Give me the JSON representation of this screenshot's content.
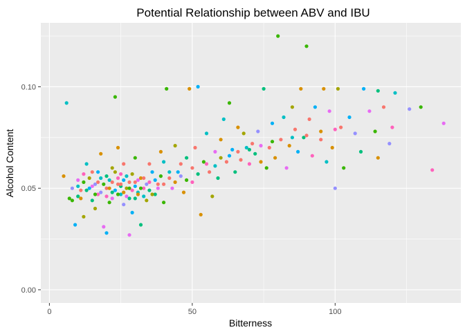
{
  "chart_data": {
    "type": "scatter",
    "title": "Potential Relationship between ABV and IBU",
    "xlabel": "Bitterness",
    "ylabel": "Alcohol Content",
    "xlim": [
      -3,
      144
    ],
    "ylim": [
      -0.0065,
      0.1315
    ],
    "x_ticks": [
      0,
      50,
      100
    ],
    "x_tick_labels": [
      "0",
      "50",
      "100"
    ],
    "y_ticks": [
      0.0,
      0.05,
      0.1
    ],
    "y_tick_labels": [
      "0.00",
      "0.05",
      "0.10"
    ],
    "grid": true,
    "legend": "none",
    "colors": [
      "#F8766D",
      "#D89000",
      "#A3A500",
      "#39B600",
      "#00BF7D",
      "#00BFC4",
      "#00B0F6",
      "#9590FF",
      "#E76BF3",
      "#FF62BC"
    ],
    "points": [
      [
        5,
        0.056,
        1
      ],
      [
        6,
        0.092,
        5
      ],
      [
        7,
        0.045,
        3
      ],
      [
        8,
        0.044,
        3
      ],
      [
        8,
        0.05,
        7
      ],
      [
        9,
        0.032,
        6
      ],
      [
        10,
        0.046,
        4
      ],
      [
        10,
        0.054,
        8
      ],
      [
        11,
        0.049,
        0
      ],
      [
        12,
        0.036,
        2
      ],
      [
        12,
        0.053,
        3
      ],
      [
        13,
        0.062,
        5
      ],
      [
        14,
        0.05,
        6
      ],
      [
        15,
        0.044,
        4
      ],
      [
        15,
        0.058,
        0
      ],
      [
        16,
        0.04,
        2
      ],
      [
        16,
        0.052,
        7
      ],
      [
        17,
        0.047,
        9
      ],
      [
        18,
        0.067,
        1
      ],
      [
        18,
        0.055,
        5
      ],
      [
        19,
        0.031,
        8
      ],
      [
        20,
        0.028,
        6
      ],
      [
        20,
        0.05,
        0
      ],
      [
        21,
        0.043,
        3
      ],
      [
        22,
        0.06,
        2
      ],
      [
        22,
        0.048,
        4
      ],
      [
        23,
        0.095,
        3
      ],
      [
        24,
        0.052,
        0
      ],
      [
        24,
        0.07,
        1
      ],
      [
        25,
        0.047,
        5
      ],
      [
        25,
        0.057,
        9
      ],
      [
        26,
        0.042,
        7
      ],
      [
        26,
        0.062,
        0
      ],
      [
        27,
        0.05,
        2
      ],
      [
        28,
        0.027,
        8
      ],
      [
        28,
        0.045,
        4
      ],
      [
        29,
        0.038,
        6
      ],
      [
        30,
        0.053,
        0
      ],
      [
        30,
        0.065,
        3
      ],
      [
        31,
        0.048,
        5
      ],
      [
        32,
        0.032,
        4
      ],
      [
        32,
        0.055,
        1
      ],
      [
        33,
        0.05,
        9
      ],
      [
        34,
        0.044,
        2
      ],
      [
        35,
        0.062,
        0
      ],
      [
        36,
        0.058,
        6
      ],
      [
        37,
        0.047,
        4
      ],
      [
        38,
        0.052,
        0
      ],
      [
        39,
        0.068,
        1
      ],
      [
        40,
        0.043,
        3
      ],
      [
        40,
        0.063,
        5
      ],
      [
        41,
        0.099,
        3
      ],
      [
        42,
        0.055,
        0
      ],
      [
        43,
        0.05,
        8
      ],
      [
        44,
        0.071,
        2
      ],
      [
        45,
        0.058,
        6
      ],
      [
        46,
        0.062,
        0
      ],
      [
        47,
        0.048,
        1
      ],
      [
        48,
        0.065,
        4
      ],
      [
        49,
        0.099,
        1
      ],
      [
        50,
        0.053,
        9
      ],
      [
        51,
        0.07,
        0
      ],
      [
        52,
        0.1,
        6
      ],
      [
        53,
        0.037,
        1
      ],
      [
        54,
        0.063,
        3
      ],
      [
        55,
        0.077,
        5
      ],
      [
        56,
        0.058,
        0
      ],
      [
        57,
        0.046,
        2
      ],
      [
        58,
        0.068,
        8
      ],
      [
        59,
        0.055,
        4
      ],
      [
        60,
        0.074,
        1
      ],
      [
        61,
        0.084,
        5
      ],
      [
        62,
        0.063,
        0
      ],
      [
        63,
        0.092,
        3
      ],
      [
        64,
        0.069,
        6
      ],
      [
        65,
        0.058,
        4
      ],
      [
        66,
        0.08,
        1
      ],
      [
        67,
        0.064,
        0
      ],
      [
        68,
        0.077,
        2
      ],
      [
        69,
        0.07,
        5
      ],
      [
        70,
        0.062,
        9
      ],
      [
        71,
        0.072,
        0
      ],
      [
        72,
        0.067,
        4
      ],
      [
        73,
        0.078,
        7
      ],
      [
        74,
        0.063,
        1
      ],
      [
        75,
        0.099,
        4
      ],
      [
        76,
        0.06,
        3
      ],
      [
        77,
        0.07,
        0
      ],
      [
        78,
        0.082,
        6
      ],
      [
        79,
        0.065,
        1
      ],
      [
        80,
        0.125,
        3
      ],
      [
        81,
        0.074,
        0
      ],
      [
        82,
        0.085,
        5
      ],
      [
        83,
        0.06,
        8
      ],
      [
        84,
        0.071,
        1
      ],
      [
        85,
        0.09,
        2
      ],
      [
        86,
        0.079,
        0
      ],
      [
        87,
        0.068,
        6
      ],
      [
        88,
        0.099,
        1
      ],
      [
        89,
        0.075,
        4
      ],
      [
        90,
        0.12,
        3
      ],
      [
        91,
        0.084,
        0
      ],
      [
        92,
        0.066,
        9
      ],
      [
        93,
        0.09,
        6
      ],
      [
        95,
        0.074,
        0
      ],
      [
        96,
        0.099,
        1
      ],
      [
        97,
        0.063,
        5
      ],
      [
        98,
        0.088,
        8
      ],
      [
        99,
        0.07,
        1
      ],
      [
        100,
        0.05,
        7
      ],
      [
        101,
        0.099,
        2
      ],
      [
        102,
        0.08,
        0
      ],
      [
        103,
        0.06,
        3
      ],
      [
        105,
        0.085,
        6
      ],
      [
        107,
        0.077,
        7
      ],
      [
        109,
        0.068,
        4
      ],
      [
        110,
        0.099,
        6
      ],
      [
        112,
        0.088,
        8
      ],
      [
        114,
        0.078,
        3
      ],
      [
        115,
        0.065,
        1
      ],
      [
        115,
        0.098,
        4
      ],
      [
        117,
        0.09,
        0
      ],
      [
        119,
        0.072,
        7
      ],
      [
        120,
        0.08,
        9
      ],
      [
        121,
        0.097,
        5
      ],
      [
        126,
        0.089,
        7
      ],
      [
        130,
        0.09,
        3
      ],
      [
        134,
        0.059,
        9
      ],
      [
        138,
        0.082,
        8
      ],
      [
        10,
        0.051,
        5
      ],
      [
        11,
        0.045,
        1
      ],
      [
        12,
        0.057,
        9
      ],
      [
        13,
        0.049,
        4
      ],
      [
        14,
        0.055,
        2
      ],
      [
        15,
        0.051,
        8
      ],
      [
        16,
        0.047,
        3
      ],
      [
        17,
        0.053,
        0
      ],
      [
        17,
        0.058,
        6
      ],
      [
        18,
        0.048,
        7
      ],
      [
        19,
        0.052,
        3
      ],
      [
        20,
        0.046,
        9
      ],
      [
        20,
        0.056,
        4
      ],
      [
        21,
        0.05,
        1
      ],
      [
        21,
        0.054,
        5
      ],
      [
        22,
        0.045,
        8
      ],
      [
        22,
        0.053,
        0
      ],
      [
        23,
        0.049,
        6
      ],
      [
        23,
        0.058,
        2
      ],
      [
        24,
        0.047,
        3
      ],
      [
        24,
        0.055,
        9
      ],
      [
        25,
        0.051,
        4
      ],
      [
        25,
        0.052,
        0
      ],
      [
        26,
        0.048,
        1
      ],
      [
        26,
        0.054,
        6
      ],
      [
        27,
        0.046,
        8
      ],
      [
        27,
        0.056,
        5
      ],
      [
        28,
        0.05,
        3
      ],
      [
        28,
        0.053,
        0
      ],
      [
        29,
        0.049,
        9
      ],
      [
        29,
        0.057,
        2
      ],
      [
        30,
        0.045,
        4
      ],
      [
        30,
        0.051,
        6
      ],
      [
        31,
        0.054,
        8
      ],
      [
        31,
        0.047,
        1
      ],
      [
        32,
        0.05,
        3
      ],
      [
        33,
        0.046,
        5
      ],
      [
        33,
        0.055,
        0
      ],
      [
        34,
        0.052,
        7
      ],
      [
        35,
        0.049,
        4
      ],
      [
        35,
        0.053,
        9
      ],
      [
        36,
        0.047,
        2
      ],
      [
        37,
        0.054,
        6
      ],
      [
        38,
        0.05,
        8
      ],
      [
        39,
        0.056,
        3
      ],
      [
        40,
        0.052,
        0
      ],
      [
        42,
        0.058,
        5
      ],
      [
        44,
        0.053,
        1
      ],
      [
        46,
        0.056,
        7
      ],
      [
        48,
        0.054,
        3
      ],
      [
        50,
        0.06,
        0
      ],
      [
        52,
        0.057,
        4
      ],
      [
        55,
        0.062,
        9
      ],
      [
        58,
        0.061,
        5
      ],
      [
        60,
        0.065,
        2
      ],
      [
        63,
        0.066,
        6
      ],
      [
        66,
        0.068,
        0
      ],
      [
        70,
        0.069,
        4
      ],
      [
        74,
        0.071,
        8
      ],
      [
        78,
        0.073,
        3
      ],
      [
        85,
        0.075,
        5
      ],
      [
        90,
        0.076,
        0
      ],
      [
        95,
        0.078,
        1
      ],
      [
        100,
        0.079,
        9
      ]
    ]
  }
}
